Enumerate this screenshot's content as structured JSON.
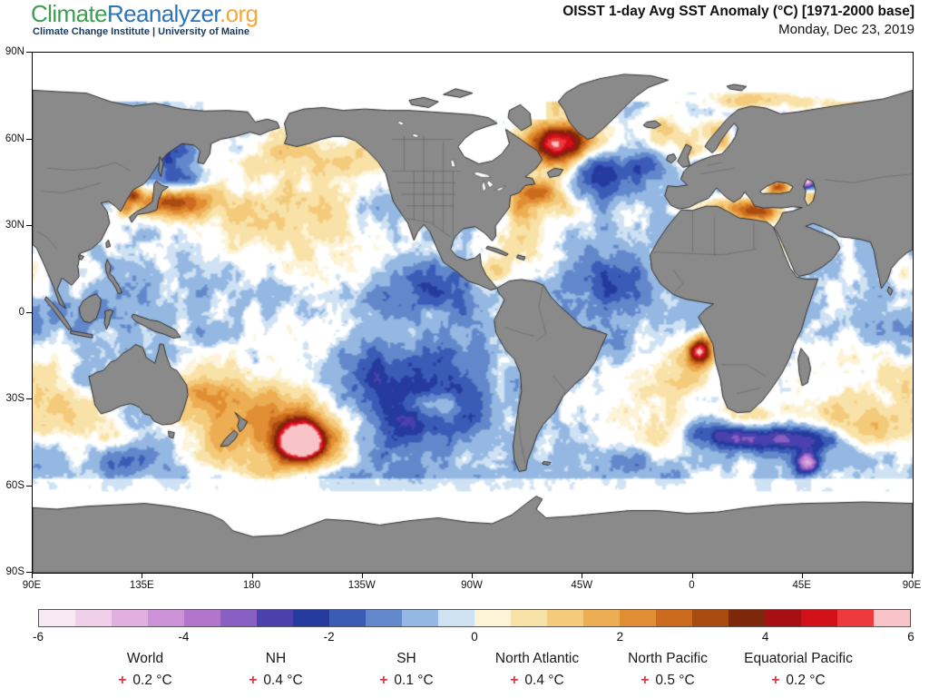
{
  "header": {
    "logo": {
      "part1": "Climate",
      "part2": "Reanalyzer",
      "part3": ".org",
      "part1_color": "#3C9E50",
      "part2_color": "#2E74B5",
      "part3_color": "#F2A93B",
      "subtitle": "Climate Change Institute | University of Maine",
      "subtitle_color": "#16395D"
    },
    "title": "OISST 1-day Avg SST Anomaly (°C) [1971-2000 base]",
    "date": "Monday, Dec 23, 2019"
  },
  "map": {
    "lat_ticks": [
      "90N",
      "60N",
      "30N",
      "0",
      "30S",
      "60S",
      "90S"
    ],
    "lon_ticks": [
      "90E",
      "135E",
      "180",
      "135W",
      "90W",
      "45W",
      "0",
      "45E",
      "90E"
    ],
    "land_color": "#8a8a8a",
    "coast_color": "#2f2f2f",
    "border_color": "#5f5f5f",
    "ice_color": "#ffffff"
  },
  "colorbar": {
    "min": -6,
    "max": 6,
    "tick_labels": [
      "-6",
      "-4",
      "-2",
      "0",
      "2",
      "4",
      "6"
    ],
    "cell_colors": [
      "#f9e9f4",
      "#f0cfea",
      "#e1b0e0",
      "#cc92d7",
      "#b375cc",
      "#8a5fc4",
      "#4b41ad",
      "#253a9d",
      "#3a5cb7",
      "#6288cb",
      "#94b8e2",
      "#cfe2f4",
      "#fdf3d6",
      "#f9e2a8",
      "#f4ca7b",
      "#edad52",
      "#e18d33",
      "#cc6b1e",
      "#aa4b12",
      "#7f270b",
      "#a80f15",
      "#d31118",
      "#ee3a3e",
      "#f9c4c7"
    ]
  },
  "stats": [
    {
      "label": "World",
      "sign": "+",
      "value": "0.2 °C"
    },
    {
      "label": "NH",
      "sign": "+",
      "value": "0.4 °C"
    },
    {
      "label": "SH",
      "sign": "+",
      "value": "0.1 °C"
    },
    {
      "label": "North Atlantic",
      "sign": "+",
      "value": "0.4 °C"
    },
    {
      "label": "North Pacific",
      "sign": "+",
      "value": "0.5 °C"
    },
    {
      "label": "Equatorial Pacific",
      "sign": "+",
      "value": "0.2 °C"
    }
  ],
  "sign_color": "#d03b3e",
  "chart_data": {
    "type": "heatmap",
    "title": "OISST 1-day Avg SST Anomaly (°C) [1971-2000 base]",
    "date": "Monday, Dec 23, 2019",
    "units": "°C",
    "base_period": "1971-2000",
    "projection": "equirectangular, longitude 90E eastward to 90E (map centered on 90W)",
    "lat_axis_ticks": [
      "90N",
      "60N",
      "30N",
      "0",
      "30S",
      "60S",
      "90S"
    ],
    "lon_axis_ticks": [
      "90E",
      "135E",
      "180",
      "135W",
      "90W",
      "45W",
      "0",
      "45E",
      "90E"
    ],
    "colorbar_range": [
      -6,
      6
    ],
    "colorbar_ticks": [
      -6,
      -4,
      -2,
      0,
      2,
      4,
      6
    ],
    "legend_position": "bottom",
    "grid": false,
    "region_mean_anomalies": {
      "World": 0.2,
      "NH": 0.4,
      "SH": 0.1,
      "North Atlantic": 0.4,
      "North Pacific": 0.5,
      "Equatorial Pacific": 0.2
    },
    "notable_features": [
      "Intense warm anomaly (>6°C, pale core) in South Pacific near 45S 160W",
      "Strong warm anomaly (~4-6°C) in Labrador/Irminger Sea south of Greenland",
      "Dark red warm streaks in NW Pacific east of Japan (~35-42N)",
      "Broad cool anomaly (-1 to -2°C) in SE Pacific west of Chile",
      "Warm red spot off Angola coast (~13S 3E)",
      "Black Sea and Mediterranean strongly warm; northern Caspian cool (purple)",
      "Dark blue cool streaks south of Africa along ~43S",
      "Arctic and Antarctic sea-ice zones near 0°C anomaly (white)",
      "Land masked gray with country borders"
    ]
  }
}
